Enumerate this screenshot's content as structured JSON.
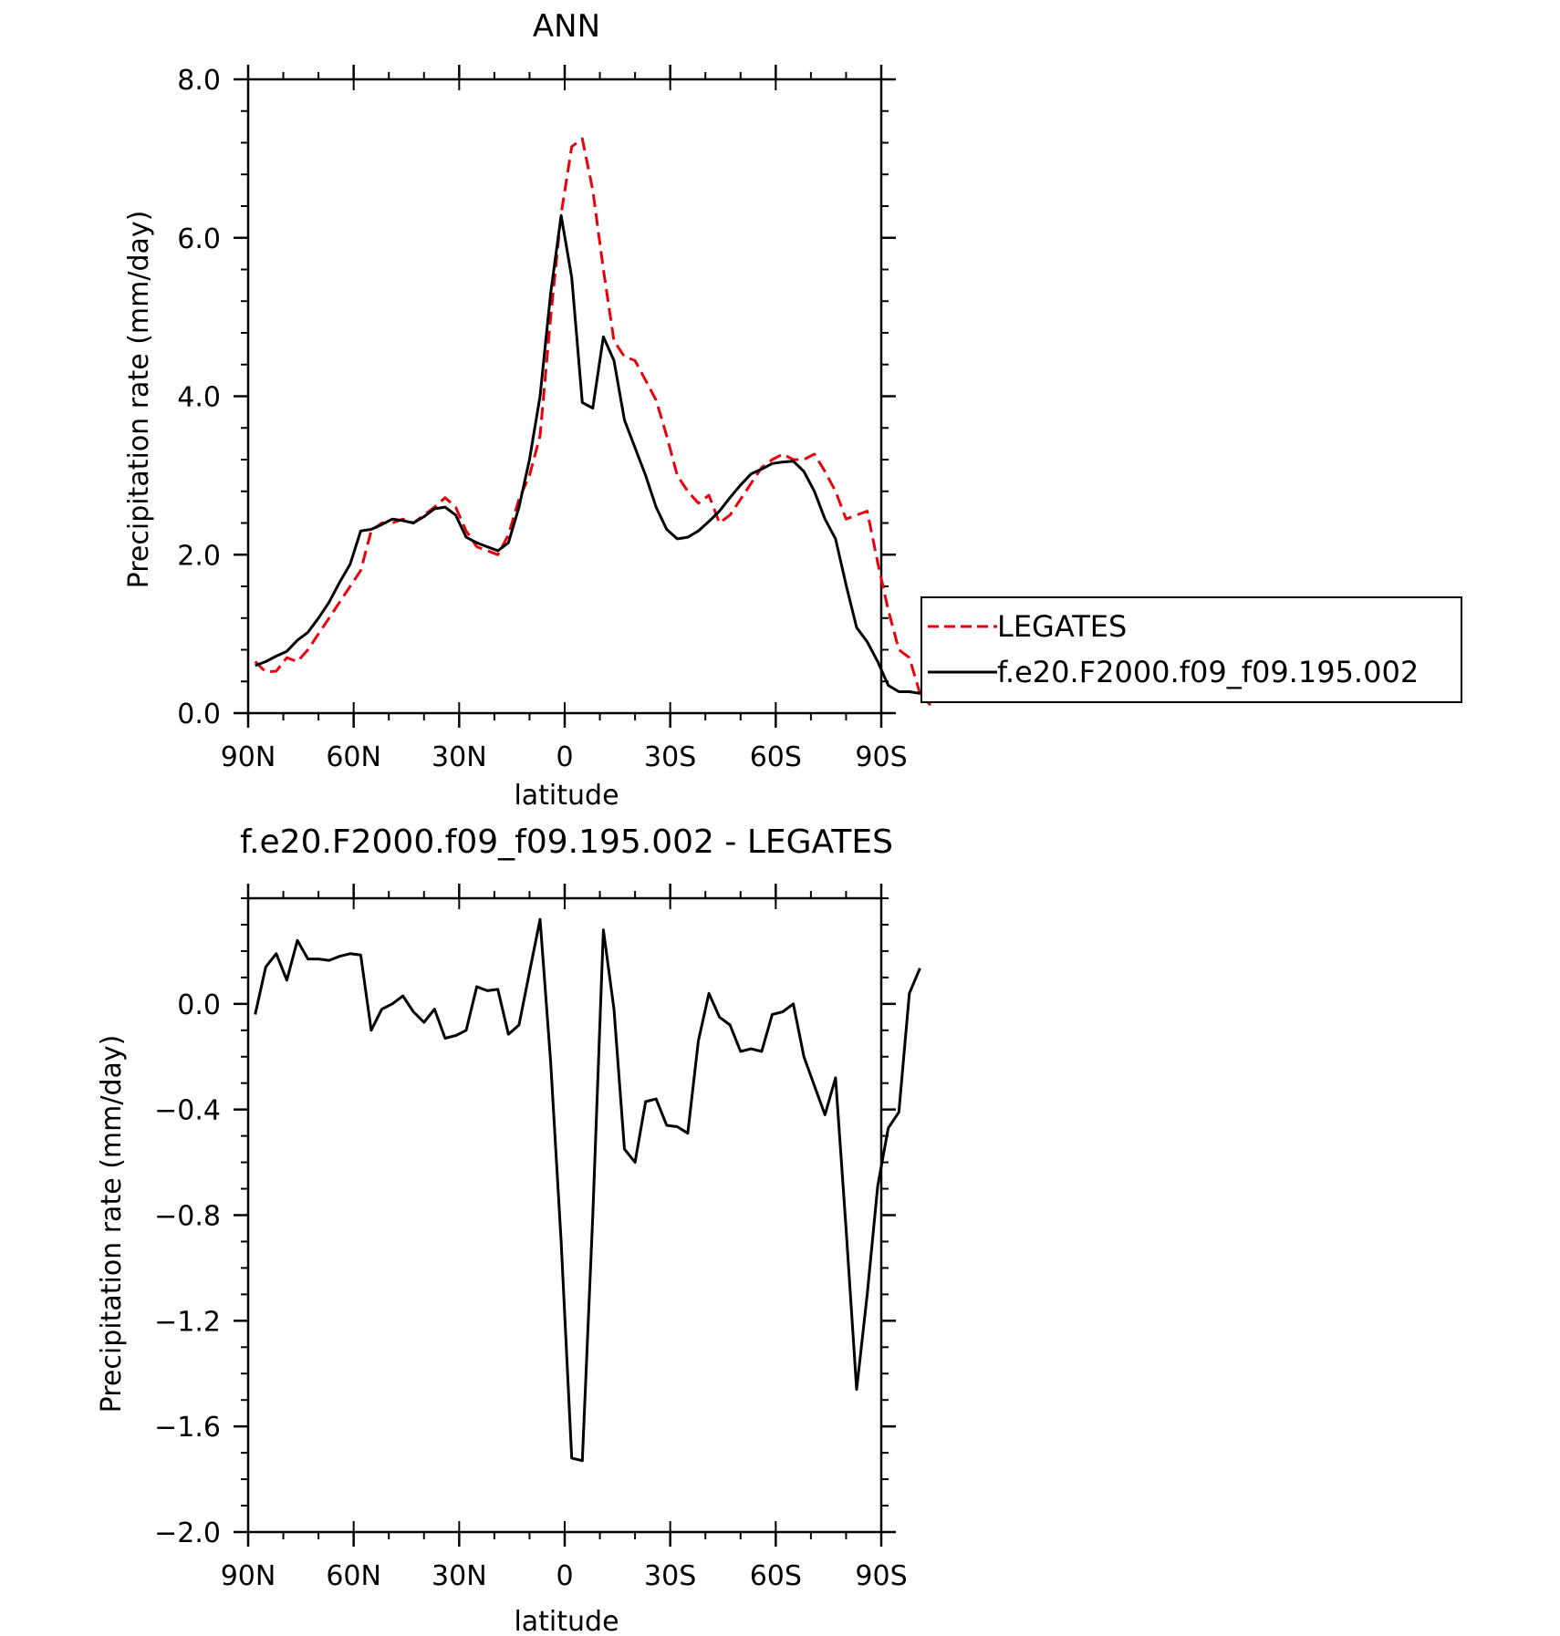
{
  "chart_data": [
    {
      "type": "line",
      "title": "ANN",
      "xlabel": "latitude",
      "ylabel": "Precipitation rate (mm/day)",
      "xlim": [
        90,
        -90
      ],
      "ylim": [
        0,
        8
      ],
      "x_ticks": [
        {
          "v": 90,
          "label": "90N"
        },
        {
          "v": 60,
          "label": "60N"
        },
        {
          "v": 30,
          "label": "30N"
        },
        {
          "v": 0,
          "label": "0"
        },
        {
          "v": -30,
          "label": "30S"
        },
        {
          "v": -60,
          "label": "60S"
        },
        {
          "v": -90,
          "label": "90S"
        }
      ],
      "y_ticks": [
        {
          "v": 0,
          "label": "0.0"
        },
        {
          "v": 2,
          "label": "2.0"
        },
        {
          "v": 4,
          "label": "4.0"
        },
        {
          "v": 6,
          "label": "6.0"
        },
        {
          "v": 8,
          "label": "8.0"
        }
      ],
      "legend": {
        "position": "right"
      },
      "series": [
        {
          "name": "LEGATES",
          "color": "#e8000b",
          "dash": true,
          "points": [
            [
              88,
              0.65
            ],
            [
              85,
              0.52
            ],
            [
              82,
              0.53
            ],
            [
              79,
              0.7
            ],
            [
              76,
              0.65
            ],
            [
              73,
              0.8
            ],
            [
              70,
              1.0
            ],
            [
              67,
              1.2
            ],
            [
              64,
              1.4
            ],
            [
              61,
              1.6
            ],
            [
              58,
              1.8
            ],
            [
              55,
              2.3
            ],
            [
              52,
              2.4
            ],
            [
              49,
              2.4
            ],
            [
              46,
              2.45
            ],
            [
              43,
              2.4
            ],
            [
              40,
              2.5
            ],
            [
              37,
              2.6
            ],
            [
              34,
              2.72
            ],
            [
              31,
              2.6
            ],
            [
              28,
              2.3
            ],
            [
              25,
              2.1
            ],
            [
              22,
              2.05
            ],
            [
              19,
              2.0
            ],
            [
              16,
              2.25
            ],
            [
              13,
              2.7
            ],
            [
              10,
              3.0
            ],
            [
              7,
              3.5
            ],
            [
              4,
              5.0
            ],
            [
              1,
              6.3
            ],
            [
              -2,
              7.15
            ],
            [
              -5,
              7.25
            ],
            [
              -8,
              6.6
            ],
            [
              -11,
              5.6
            ],
            [
              -14,
              4.7
            ],
            [
              -17,
              4.5
            ],
            [
              -20,
              4.45
            ],
            [
              -23,
              4.2
            ],
            [
              -26,
              3.95
            ],
            [
              -29,
              3.5
            ],
            [
              -32,
              3.0
            ],
            [
              -35,
              2.8
            ],
            [
              -38,
              2.65
            ],
            [
              -41,
              2.75
            ],
            [
              -44,
              2.4
            ],
            [
              -47,
              2.5
            ],
            [
              -50,
              2.7
            ],
            [
              -53,
              2.9
            ],
            [
              -56,
              3.1
            ],
            [
              -59,
              3.2
            ],
            [
              -62,
              3.27
            ],
            [
              -65,
              3.2
            ],
            [
              -68,
              3.2
            ],
            [
              -71,
              3.27
            ],
            [
              -74,
              3.05
            ],
            [
              -77,
              2.8
            ],
            [
              -80,
              2.45
            ],
            [
              -83,
              2.5
            ],
            [
              -86,
              2.55
            ],
            [
              -89,
              1.9
            ],
            [
              -92,
              1.3
            ],
            [
              -95,
              0.8
            ],
            [
              -98,
              0.7
            ],
            [
              -101,
              0.25
            ],
            [
              -104,
              0.1
            ]
          ]
        },
        {
          "name": "f.e20.F2000.f09_f09.195.002",
          "color": "#000000",
          "dash": false,
          "points": [
            [
              88,
              0.6
            ],
            [
              85,
              0.65
            ],
            [
              82,
              0.72
            ],
            [
              79,
              0.78
            ],
            [
              76,
              0.92
            ],
            [
              73,
              1.02
            ],
            [
              70,
              1.2
            ],
            [
              67,
              1.4
            ],
            [
              64,
              1.65
            ],
            [
              61,
              1.88
            ],
            [
              58,
              2.3
            ],
            [
              55,
              2.32
            ],
            [
              52,
              2.38
            ],
            [
              49,
              2.45
            ],
            [
              46,
              2.43
            ],
            [
              43,
              2.4
            ],
            [
              40,
              2.48
            ],
            [
              37,
              2.58
            ],
            [
              34,
              2.6
            ],
            [
              31,
              2.5
            ],
            [
              28,
              2.22
            ],
            [
              25,
              2.15
            ],
            [
              22,
              2.1
            ],
            [
              19,
              2.05
            ],
            [
              16,
              2.15
            ],
            [
              13,
              2.6
            ],
            [
              10,
              3.2
            ],
            [
              7,
              4.0
            ],
            [
              4,
              5.3
            ],
            [
              1,
              6.28
            ],
            [
              -2,
              5.5
            ],
            [
              -5,
              3.92
            ],
            [
              -8,
              3.85
            ],
            [
              -11,
              4.75
            ],
            [
              -14,
              4.45
            ],
            [
              -17,
              3.7
            ],
            [
              -20,
              3.35
            ],
            [
              -23,
              3.0
            ],
            [
              -26,
              2.6
            ],
            [
              -29,
              2.32
            ],
            [
              -32,
              2.2
            ],
            [
              -35,
              2.22
            ],
            [
              -38,
              2.3
            ],
            [
              -41,
              2.42
            ],
            [
              -44,
              2.55
            ],
            [
              -47,
              2.72
            ],
            [
              -50,
              2.88
            ],
            [
              -53,
              3.02
            ],
            [
              -56,
              3.08
            ],
            [
              -59,
              3.15
            ],
            [
              -62,
              3.17
            ],
            [
              -65,
              3.18
            ],
            [
              -68,
              3.05
            ],
            [
              -71,
              2.8
            ],
            [
              -74,
              2.45
            ],
            [
              -77,
              2.2
            ],
            [
              -80,
              1.62
            ],
            [
              -83,
              1.08
            ],
            [
              -86,
              0.9
            ],
            [
              -89,
              0.65
            ],
            [
              -92,
              0.35
            ],
            [
              -95,
              0.27
            ],
            [
              -98,
              0.27
            ],
            [
              -101,
              0.25
            ]
          ]
        }
      ]
    },
    {
      "type": "line",
      "title": "f.e20.F2000.f09_f09.195.002 - LEGATES",
      "xlabel": "latitude",
      "ylabel": "Precipitation rate (mm/day)",
      "xlim": [
        90,
        -90
      ],
      "ylim": [
        -2.0,
        0.4
      ],
      "x_ticks": [
        {
          "v": 90,
          "label": "90N"
        },
        {
          "v": 60,
          "label": "60N"
        },
        {
          "v": 30,
          "label": "30N"
        },
        {
          "v": 0,
          "label": "0"
        },
        {
          "v": -30,
          "label": "30S"
        },
        {
          "v": -60,
          "label": "60S"
        },
        {
          "v": -90,
          "label": "90S"
        }
      ],
      "y_ticks": [
        {
          "v": 0.0,
          "label": "0.0"
        },
        {
          "v": -0.4,
          "label": "-0.4"
        },
        {
          "v": -0.8,
          "label": "-0.8"
        },
        {
          "v": -1.2,
          "label": "-1.2"
        },
        {
          "v": -1.6,
          "label": "-1.6"
        },
        {
          "v": -2.0,
          "label": "-2.0"
        }
      ],
      "series": [
        {
          "color": "#000000",
          "dash": false,
          "points": [
            [
              88,
              -0.04
            ],
            [
              85,
              0.14
            ],
            [
              82,
              0.19
            ],
            [
              79,
              0.09
            ],
            [
              76,
              0.24
            ],
            [
              73,
              0.17
            ],
            [
              70,
              0.17
            ],
            [
              67,
              0.165
            ],
            [
              64,
              0.18
            ],
            [
              61,
              0.19
            ],
            [
              58,
              0.185
            ],
            [
              55,
              -0.1
            ],
            [
              52,
              -0.02
            ],
            [
              49,
              0.0
            ],
            [
              46,
              0.03
            ],
            [
              43,
              -0.03
            ],
            [
              40,
              -0.07
            ],
            [
              37,
              -0.02
            ],
            [
              34,
              -0.13
            ],
            [
              31,
              -0.12
            ],
            [
              28,
              -0.1
            ],
            [
              25,
              0.065
            ],
            [
              22,
              0.05
            ],
            [
              19,
              0.055
            ],
            [
              16,
              -0.115
            ],
            [
              13,
              -0.08
            ],
            [
              10,
              0.12
            ],
            [
              7,
              0.32
            ],
            [
              4,
              -0.22
            ],
            [
              1,
              -0.9
            ],
            [
              -2,
              -1.72
            ],
            [
              -5,
              -1.73
            ],
            [
              -8,
              -0.8
            ],
            [
              -11,
              0.28
            ],
            [
              -14,
              -0.02
            ],
            [
              -17,
              -0.55
            ],
            [
              -20,
              -0.6
            ],
            [
              -23,
              -0.37
            ],
            [
              -26,
              -0.36
            ],
            [
              -29,
              -0.46
            ],
            [
              -32,
              -0.465
            ],
            [
              -35,
              -0.49
            ],
            [
              -38,
              -0.14
            ],
            [
              -41,
              0.04
            ],
            [
              -44,
              -0.05
            ],
            [
              -47,
              -0.08
            ],
            [
              -50,
              -0.18
            ],
            [
              -53,
              -0.17
            ],
            [
              -56,
              -0.18
            ],
            [
              -59,
              -0.04
            ],
            [
              -62,
              -0.03
            ],
            [
              -65,
              0.0
            ],
            [
              -68,
              -0.2
            ],
            [
              -71,
              -0.31
            ],
            [
              -74,
              -0.42
            ],
            [
              -77,
              -0.28
            ],
            [
              -80,
              -0.85
            ],
            [
              -83,
              -1.46
            ],
            [
              -86,
              -1.1
            ],
            [
              -89,
              -0.69
            ],
            [
              -92,
              -0.47
            ],
            [
              -95,
              -0.41
            ],
            [
              -98,
              0.04
            ],
            [
              -101,
              0.135
            ]
          ]
        }
      ]
    }
  ]
}
